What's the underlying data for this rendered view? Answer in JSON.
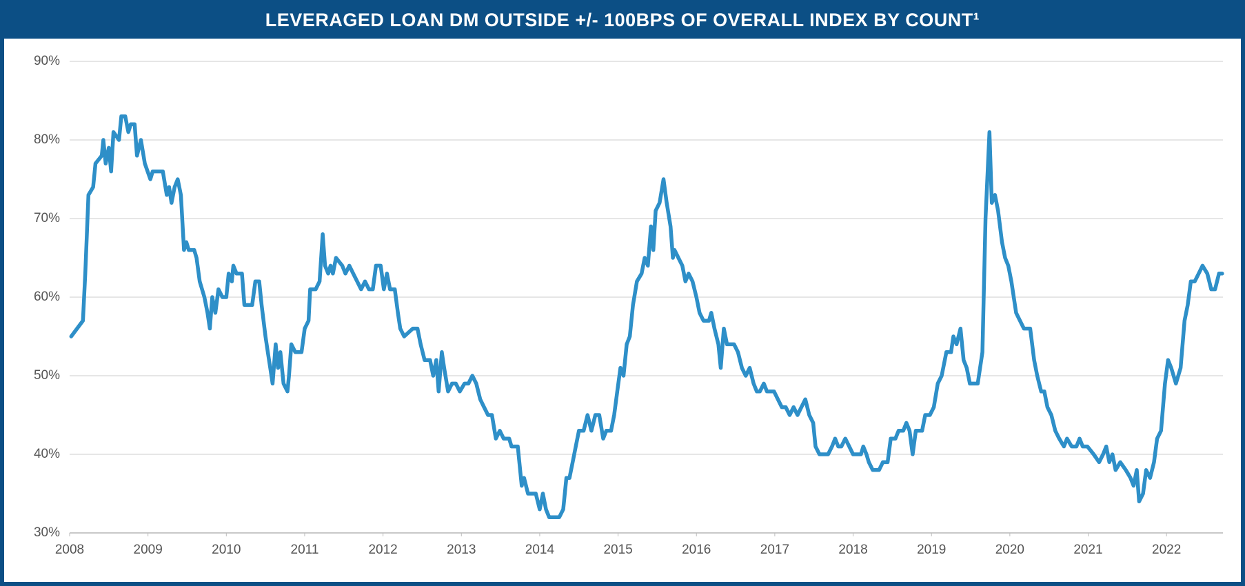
{
  "chart_data": {
    "type": "line",
    "title": "LEVERAGED LOAN DM OUTSIDE +/- 100BPS OF OVERALL INDEX BY COUNT¹",
    "color": "#2e8fc8",
    "grid": true,
    "xlim": [
      2008,
      2022.72
    ],
    "xticks": [
      2008,
      2009,
      2010,
      2011,
      2012,
      2013,
      2014,
      2015,
      2016,
      2017,
      2018,
      2019,
      2020,
      2021,
      2022
    ],
    "ylim": [
      30,
      90
    ],
    "yticks": [
      {
        "value": 30,
        "label": "30%"
      },
      {
        "value": 40,
        "label": "40%"
      },
      {
        "value": 50,
        "label": "50%"
      },
      {
        "value": 60,
        "label": "60%"
      },
      {
        "value": 70,
        "label": "70%"
      },
      {
        "value": 80,
        "label": "80%"
      },
      {
        "value": 90,
        "label": "90%"
      }
    ],
    "x": [
      2008.02,
      2008.17,
      2008.2,
      2008.24,
      2008.3,
      2008.33,
      2008.41,
      2008.43,
      2008.46,
      2008.5,
      2008.53,
      2008.56,
      2008.63,
      2008.66,
      2008.71,
      2008.75,
      2008.78,
      2008.83,
      2008.86,
      2008.91,
      2008.96,
      2009.03,
      2009.06,
      2009.19,
      2009.24,
      2009.27,
      2009.3,
      2009.34,
      2009.38,
      2009.42,
      2009.46,
      2009.49,
      2009.52,
      2009.59,
      2009.62,
      2009.66,
      2009.72,
      2009.76,
      2009.79,
      2009.82,
      2009.86,
      2009.9,
      2009.95,
      2010.0,
      2010.03,
      2010.07,
      2010.09,
      2010.13,
      2010.2,
      2010.23,
      2010.33,
      2010.37,
      2010.42,
      2010.45,
      2010.5,
      2010.53,
      2010.56,
      2010.59,
      2010.63,
      2010.66,
      2010.69,
      2010.73,
      2010.78,
      2010.8,
      2010.83,
      2010.88,
      2010.96,
      2011.0,
      2011.05,
      2011.07,
      2011.14,
      2011.19,
      2011.23,
      2011.26,
      2011.3,
      2011.33,
      2011.36,
      2011.4,
      2011.48,
      2011.52,
      2011.57,
      2011.62,
      2011.67,
      2011.72,
      2011.77,
      2011.82,
      2011.87,
      2011.91,
      2011.97,
      2012.01,
      2012.05,
      2012.09,
      2012.15,
      2012.19,
      2012.22,
      2012.27,
      2012.38,
      2012.44,
      2012.48,
      2012.53,
      2012.6,
      2012.64,
      2012.68,
      2012.71,
      2012.75,
      2012.78,
      2012.83,
      2012.88,
      2012.93,
      2012.98,
      2013.04,
      2013.09,
      2013.14,
      2013.19,
      2013.24,
      2013.29,
      2013.34,
      2013.39,
      2013.44,
      2013.49,
      2013.54,
      2013.61,
      2013.64,
      2013.72,
      2013.77,
      2013.8,
      2013.85,
      2013.95,
      2014.0,
      2014.04,
      2014.08,
      2014.12,
      2014.25,
      2014.3,
      2014.34,
      2014.38,
      2014.42,
      2014.46,
      2014.5,
      2014.56,
      2014.61,
      2014.66,
      2014.71,
      2014.76,
      2014.81,
      2014.85,
      2014.91,
      2014.95,
      2014.99,
      2015.03,
      2015.07,
      2015.11,
      2015.15,
      2015.19,
      2015.24,
      2015.3,
      2015.34,
      2015.38,
      2015.42,
      2015.45,
      2015.48,
      2015.53,
      2015.58,
      2015.62,
      2015.67,
      2015.7,
      2015.72,
      2015.77,
      2015.82,
      2015.86,
      2015.9,
      2015.95,
      2016.0,
      2016.04,
      2016.09,
      2016.16,
      2016.19,
      2016.23,
      2016.28,
      2016.31,
      2016.35,
      2016.39,
      2016.48,
      2016.53,
      2016.58,
      2016.63,
      2016.68,
      2016.73,
      2016.77,
      2016.81,
      2016.86,
      2016.9,
      2016.99,
      2017.04,
      2017.09,
      2017.14,
      2017.19,
      2017.24,
      2017.29,
      2017.34,
      2017.39,
      2017.44,
      2017.49,
      2017.52,
      2017.57,
      2017.68,
      2017.73,
      2017.77,
      2017.81,
      2017.85,
      2017.9,
      2017.95,
      2018.0,
      2018.1,
      2018.13,
      2018.17,
      2018.2,
      2018.25,
      2018.33,
      2018.38,
      2018.44,
      2018.48,
      2018.54,
      2018.58,
      2018.64,
      2018.68,
      2018.72,
      2018.76,
      2018.8,
      2018.88,
      2018.92,
      2018.98,
      2019.03,
      2019.08,
      2019.13,
      2019.19,
      2019.25,
      2019.28,
      2019.32,
      2019.37,
      2019.41,
      2019.45,
      2019.49,
      2019.59,
      2019.65,
      2019.69,
      2019.74,
      2019.77,
      2019.81,
      2019.85,
      2019.9,
      2019.94,
      2019.98,
      2020.02,
      2020.08,
      2020.13,
      2020.18,
      2020.26,
      2020.31,
      2020.35,
      2020.4,
      2020.44,
      2020.48,
      2020.53,
      2020.58,
      2020.63,
      2020.69,
      2020.73,
      2020.79,
      2020.85,
      2020.89,
      2020.93,
      2020.99,
      2021.07,
      2021.14,
      2021.19,
      2021.23,
      2021.27,
      2021.31,
      2021.35,
      2021.41,
      2021.48,
      2021.54,
      2021.58,
      2021.62,
      2021.65,
      2021.7,
      2021.74,
      2021.79,
      2021.84,
      2021.88,
      2021.93,
      2021.98,
      2022.02,
      2022.06,
      2022.12,
      2022.18,
      2022.23,
      2022.27,
      2022.31,
      2022.36,
      2022.41,
      2022.46,
      2022.52,
      2022.57,
      2022.62,
      2022.67,
      2022.71
    ],
    "values": [
      55,
      57,
      63,
      73,
      74,
      77,
      78,
      80,
      77,
      79,
      76,
      81,
      80,
      83,
      83,
      81,
      82,
      82,
      78,
      80,
      77,
      75,
      76,
      76,
      73,
      74,
      72,
      74,
      75,
      73,
      66,
      67,
      66,
      66,
      65,
      62,
      60,
      58,
      56,
      60,
      58,
      61,
      60,
      60,
      63,
      62,
      64,
      63,
      63,
      59,
      59,
      62,
      62,
      59,
      55,
      53,
      51,
      49,
      54,
      51,
      53,
      49,
      48,
      50,
      54,
      53,
      53,
      56,
      57,
      61,
      61,
      62,
      68,
      64,
      63,
      64,
      63,
      65,
      64,
      63,
      64,
      63,
      62,
      61,
      62,
      61,
      61,
      64,
      64,
      61,
      63,
      61,
      61,
      58,
      56,
      55,
      56,
      56,
      54,
      52,
      52,
      50,
      52,
      48,
      53,
      51,
      48,
      49,
      49,
      48,
      49,
      49,
      50,
      49,
      47,
      46,
      45,
      45,
      42,
      43,
      42,
      42,
      41,
      41,
      36,
      37,
      35,
      35,
      33,
      35,
      33,
      32,
      32,
      33,
      37,
      37,
      39,
      41,
      43,
      43,
      45,
      43,
      45,
      45,
      42,
      43,
      43,
      45,
      48,
      51,
      50,
      54,
      55,
      59,
      62,
      63,
      65,
      64,
      69,
      66,
      71,
      72,
      75,
      72,
      69,
      65,
      66,
      65,
      64,
      62,
      63,
      62,
      60,
      58,
      57,
      57,
      58,
      56,
      54,
      51,
      56,
      54,
      54,
      53,
      51,
      50,
      51,
      49,
      48,
      48,
      49,
      48,
      48,
      47,
      46,
      46,
      45,
      46,
      45,
      46,
      47,
      45,
      44,
      41,
      40,
      40,
      41,
      42,
      41,
      41,
      42,
      41,
      40,
      40,
      41,
      40,
      39,
      38,
      38,
      39,
      39,
      42,
      42,
      43,
      43,
      44,
      43,
      40,
      43,
      43,
      45,
      45,
      46,
      49,
      50,
      53,
      53,
      55,
      54,
      56,
      52,
      51,
      49,
      49,
      53,
      70,
      81,
      72,
      73,
      71,
      67,
      65,
      64,
      62,
      58,
      57,
      56,
      56,
      52,
      50,
      48,
      48,
      46,
      45,
      43,
      42,
      41,
      42,
      41,
      41,
      42,
      41,
      41,
      40,
      39,
      40,
      41,
      39,
      40,
      38,
      39,
      38,
      37,
      36,
      38,
      34,
      35,
      38,
      37,
      39,
      42,
      43,
      49,
      52,
      51,
      49,
      51,
      57,
      59,
      62,
      62,
      63,
      64,
      63,
      61,
      61,
      63,
      63
    ]
  }
}
